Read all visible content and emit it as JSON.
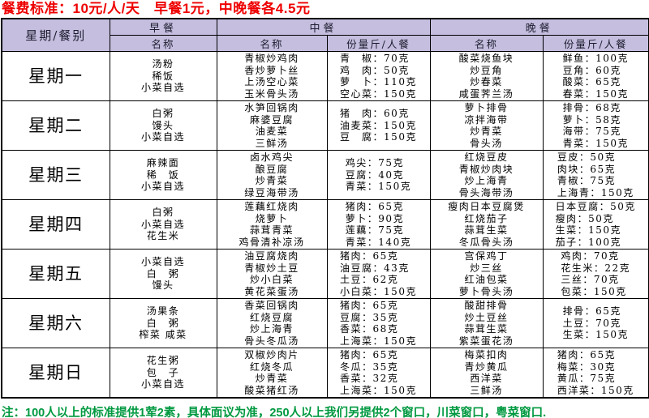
{
  "title": "餐费标准：10元/人/天　早餐1元，中晚餐各4.5元",
  "footer_note": "注：100人以上的标准提供1荤2素，具体面议为准，250人以上我们另提供2个窗口，川菜窗口，粤菜窗口.",
  "colors": {
    "title_red": "#ee0000",
    "footer_green": "#009940",
    "header_bg": "#c5bedf",
    "border": "#000000"
  },
  "table": {
    "corner_header": "星期/餐别",
    "meal_headers": [
      "早餐",
      "中餐",
      "晚餐"
    ],
    "sub_headers": {
      "name": "名称",
      "portion": "份量斤/人餐"
    },
    "rows": [
      {
        "day": "星期一",
        "breakfast": [
          "汤粉",
          "稀饭",
          "小菜自选"
        ],
        "lunch_names": [
          "青椒炒鸡肉",
          "香炒萝卜丝",
          "上汤空心菜",
          "玉米骨头汤"
        ],
        "lunch_portions": [
          "青　椒：70克",
          "鸡　肉：50克",
          "萝　卜：110克",
          "空心菜：150克"
        ],
        "dinner_names": [
          "酸菜烧鱼块",
          "炒豆角",
          "炒春菜",
          "咸蛋荠兰汤"
        ],
        "dinner_portions": [
          "鲜鱼：100克",
          "豆角：60克",
          "酸菜：65克",
          "春菜：150克"
        ]
      },
      {
        "day": "星期二",
        "breakfast": [
          "白粥",
          "馒头",
          "小菜自选"
        ],
        "lunch_names": [
          "水笋回锅肉",
          "麻婆豆腐",
          "油麦菜",
          "三鲜汤"
        ],
        "lunch_portions": [
          "猪　肉：60克",
          "油麦菜：150克",
          "豆　腐：150克"
        ],
        "dinner_names": [
          "萝卜排骨",
          "凉拌海带",
          "炒青菜",
          "骨头汤"
        ],
        "dinner_portions": [
          "排骨：68克",
          "萝卜：58克",
          "海带：75克",
          "青菜：150克"
        ]
      },
      {
        "day": "星期三",
        "breakfast": [
          "麻辣面",
          "稀　饭",
          "小菜自选"
        ],
        "lunch_names": [
          "卤水鸡尖",
          "酿豆腐",
          "炒青菜",
          "绿豆海带汤"
        ],
        "lunch_portions": [
          "鸡尖：75克",
          "豆腐：40克",
          "青菜：150克"
        ],
        "dinner_names": [
          "红烧豆皮",
          "青椒炒肉块",
          "炒上海青",
          "骨头海带汤"
        ],
        "dinner_portions": [
          "豆皮：50克",
          "肉块：65克",
          "青椒：75克",
          "上海青：150克"
        ]
      },
      {
        "day": "星期四",
        "breakfast": [
          "白粥",
          "小菜自选",
          "花生米"
        ],
        "lunch_names": [
          "莲藕红烧肉",
          "烧萝卜",
          "蒜茸青菜",
          "鸡骨清补凉汤"
        ],
        "lunch_portions": [
          "猪肉：65克",
          "萝卜：90克",
          "莲藕：75克",
          "青菜：140克"
        ],
        "dinner_names": [
          "瘦肉日本豆腐煲",
          "红烧茄子",
          "蒜茸生菜",
          "冬瓜骨头汤"
        ],
        "dinner_portions": [
          "日本豆腐：50克",
          "瘦肉：50克",
          "生菜：150克",
          "茄子：100克"
        ]
      },
      {
        "day": "星期五",
        "breakfast": [
          "小菜自选",
          "白　粥",
          "馒头"
        ],
        "lunch_names": [
          "油豆腐烧肉",
          "青椒炒土豆",
          "炒小白菜",
          "黄花菜蛋汤"
        ],
        "lunch_portions": [
          "猪肉：65克",
          "油豆腐：43克",
          "土豆：62克",
          "小白菜：150克"
        ],
        "dinner_names": [
          "宫保鸡丁",
          "炒三丝",
          "红油包菜",
          "萝卜骨头汤"
        ],
        "dinner_portions": [
          "鸡肉：70克",
          "花生米：22克",
          "三丝：70克",
          "包菜：150克"
        ]
      },
      {
        "day": "星期六",
        "breakfast": [
          "汤果条",
          "白　粥",
          "榨菜 咸菜"
        ],
        "lunch_names": [
          "香菜回锅肉",
          "红烧豆腐",
          "炒上海青",
          "骨头冬瓜汤"
        ],
        "lunch_portions": [
          "猪肉：65克",
          "豆腐：35克",
          "香菜：68克",
          "上海菜：150克"
        ],
        "dinner_names": [
          "酸甜排骨",
          "炒土豆丝",
          "蒜茸生菜",
          "紫菜蛋花汤"
        ],
        "dinner_portions": [
          "排骨：65克",
          "土豆：70克",
          "生菜：150克"
        ]
      },
      {
        "day": "星期日",
        "breakfast": [
          "花生粥",
          "包　子",
          "小菜自选"
        ],
        "lunch_names": [
          "双椒炒肉片",
          "红烧冬瓜",
          "炒青菜",
          "酸菜猪红汤"
        ],
        "lunch_portions": [
          "猪肉：65克",
          "冬瓜：35克",
          "香菜：32克",
          "上海菜：150克"
        ],
        "dinner_names": [
          "梅菜扣肉",
          "青炒黄瓜",
          "西洋菜",
          "三鲜汤"
        ],
        "dinner_portions": [
          "猪肉：65克",
          "梅菜：30克",
          "黄瓜：75克",
          "西洋菜：150克"
        ]
      }
    ]
  }
}
